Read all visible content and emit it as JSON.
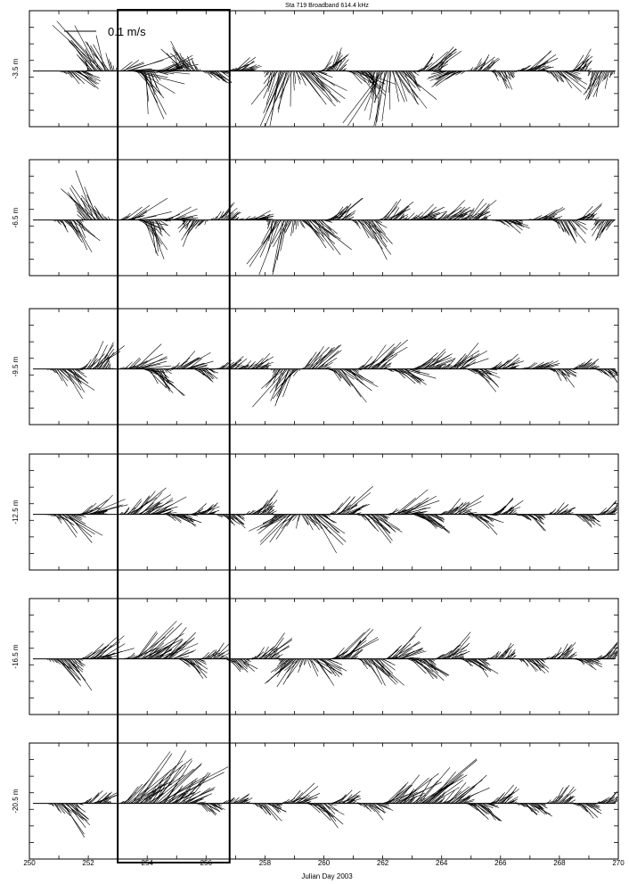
{
  "chart_data": {
    "type": "stick_plot",
    "title": "Sta 719 Broadband 614.4 kHz",
    "xlabel": "Julian Day 2003",
    "x_range": [
      250,
      270
    ],
    "x_ticks": [
      "250",
      "252",
      "254",
      "256",
      "258",
      "260",
      "262",
      "264",
      "266",
      "268",
      "270"
    ],
    "scale_label": "0.1 m/s",
    "highlight_box_days": [
      253,
      256.8
    ],
    "panels": [
      {
        "label": "-3.5 m",
        "anchors": [
          [
            251.6,
            0.35,
            -0.25
          ],
          [
            252.4,
            -0.5,
            0.85
          ],
          [
            253.4,
            0.65,
            0.3
          ],
          [
            253.8,
            0.2,
            -0.75
          ],
          [
            254.6,
            0.45,
            0.1
          ],
          [
            255.4,
            -0.3,
            0.4
          ],
          [
            256.2,
            0.25,
            -0.2
          ],
          [
            257.1,
            0.3,
            0.15
          ],
          [
            258.6,
            -0.35,
            -0.85
          ],
          [
            259.4,
            0.5,
            -0.45
          ],
          [
            260.2,
            0.25,
            0.35
          ],
          [
            261.2,
            0.4,
            -0.3
          ],
          [
            262,
            -0.3,
            -0.75
          ],
          [
            262.6,
            0.35,
            -0.45
          ],
          [
            263.6,
            0.35,
            0.35
          ],
          [
            264.4,
            -0.45,
            -0.25
          ],
          [
            265.3,
            0.2,
            0.25
          ],
          [
            266,
            0.15,
            -0.25
          ],
          [
            267,
            0.35,
            0.2
          ],
          [
            268,
            0.25,
            -0.3
          ],
          [
            268.6,
            0.2,
            0.25
          ],
          [
            269.4,
            -0.2,
            -0.45
          ]
        ]
      },
      {
        "label": "-6.5 m",
        "anchors": [
          [
            251.4,
            0.35,
            -0.45
          ],
          [
            252.2,
            -0.4,
            0.55
          ],
          [
            253.5,
            0.45,
            0.25
          ],
          [
            254,
            0.25,
            -0.55
          ],
          [
            254.8,
            0.35,
            0.1
          ],
          [
            255.6,
            -0.2,
            -0.3
          ],
          [
            256.6,
            0.2,
            0.2
          ],
          [
            257.6,
            0.25,
            0.1
          ],
          [
            258.6,
            -0.3,
            -0.75
          ],
          [
            259.6,
            0.45,
            -0.5
          ],
          [
            260.4,
            0.3,
            0.3
          ],
          [
            261.4,
            0.4,
            -0.45
          ],
          [
            262.2,
            0.3,
            0.25
          ],
          [
            263.2,
            0.35,
            0.2
          ],
          [
            264.2,
            0.3,
            0.2
          ],
          [
            265,
            0.3,
            0.25
          ],
          [
            266.2,
            0.25,
            -0.15
          ],
          [
            267.4,
            0.3,
            0.1
          ],
          [
            268.2,
            0.2,
            -0.35
          ],
          [
            268.8,
            0.25,
            0.2
          ],
          [
            269.6,
            -0.2,
            -0.25
          ]
        ]
      },
      {
        "label": "-9.5 m",
        "anchors": [
          [
            251.2,
            0.35,
            -0.35
          ],
          [
            252.2,
            0.4,
            0.45
          ],
          [
            253.6,
            0.45,
            0.25
          ],
          [
            254.2,
            0.3,
            -0.45
          ],
          [
            255.2,
            0.35,
            0.25
          ],
          [
            255.8,
            0.2,
            -0.15
          ],
          [
            256.8,
            0.2,
            0.15
          ],
          [
            257.6,
            0.25,
            0.15
          ],
          [
            258.8,
            -0.4,
            -0.55
          ],
          [
            259.6,
            0.35,
            0.35
          ],
          [
            260.6,
            0.4,
            -0.35
          ],
          [
            261.6,
            0.45,
            0.35
          ],
          [
            262.6,
            0.4,
            -0.25
          ],
          [
            263.4,
            0.35,
            0.25
          ],
          [
            264.4,
            0.4,
            0.3
          ],
          [
            265.2,
            0.3,
            -0.2
          ],
          [
            266,
            0.25,
            0.15
          ],
          [
            267.2,
            0.25,
            0.15
          ],
          [
            268,
            0.2,
            -0.2
          ],
          [
            268.8,
            0.2,
            0.15
          ],
          [
            269.6,
            0.2,
            -0.15
          ]
        ]
      },
      {
        "label": "-12.5 m",
        "anchors": [
          [
            251.2,
            0.4,
            -0.35
          ],
          [
            252,
            0.45,
            0.25
          ],
          [
            253.6,
            0.45,
            0.35
          ],
          [
            254.2,
            0.4,
            0.2
          ],
          [
            255,
            0.3,
            -0.2
          ],
          [
            255.8,
            0.25,
            0.15
          ],
          [
            256.8,
            0.2,
            -0.2
          ],
          [
            257.8,
            0.3,
            0.25
          ],
          [
            258.8,
            -0.45,
            -0.35
          ],
          [
            259.6,
            0.4,
            -0.4
          ],
          [
            260.6,
            0.45,
            0.3
          ],
          [
            261.6,
            0.4,
            -0.3
          ],
          [
            262.6,
            0.45,
            0.25
          ],
          [
            263.4,
            0.4,
            -0.3
          ],
          [
            264.4,
            0.35,
            0.25
          ],
          [
            265.2,
            0.3,
            -0.2
          ],
          [
            266,
            0.25,
            0.2
          ],
          [
            267,
            0.25,
            -0.2
          ],
          [
            268,
            0.2,
            0.15
          ],
          [
            268.8,
            0.2,
            -0.15
          ],
          [
            269.6,
            0.2,
            0.15
          ]
        ]
      },
      {
        "label": "-16.5 m",
        "anchors": [
          [
            251.2,
            0.4,
            -0.45
          ],
          [
            252.2,
            0.45,
            0.25
          ],
          [
            253.8,
            0.6,
            0.45
          ],
          [
            254.6,
            0.5,
            0.35
          ],
          [
            255.4,
            0.25,
            -0.2
          ],
          [
            256.2,
            0.2,
            0.2
          ],
          [
            257,
            0.25,
            -0.2
          ],
          [
            258,
            0.3,
            0.3
          ],
          [
            259,
            -0.4,
            -0.4
          ],
          [
            259.8,
            0.4,
            -0.35
          ],
          [
            260.6,
            0.45,
            0.4
          ],
          [
            261.6,
            0.35,
            -0.45
          ],
          [
            262.4,
            0.45,
            0.3
          ],
          [
            263.2,
            0.4,
            -0.3
          ],
          [
            264.2,
            0.35,
            0.25
          ],
          [
            265,
            0.3,
            -0.25
          ],
          [
            266,
            0.2,
            0.2
          ],
          [
            267,
            0.25,
            -0.2
          ],
          [
            268,
            0.2,
            0.2
          ],
          [
            268.8,
            0.2,
            -0.15
          ],
          [
            269.6,
            0.25,
            0.2
          ]
        ]
      },
      {
        "label": "-20.5 m",
        "anchors": [
          [
            251.2,
            0.35,
            -0.35
          ],
          [
            252.2,
            0.3,
            0.2
          ],
          [
            253.6,
            0.85,
            0.7
          ],
          [
            254.4,
            0.8,
            0.75
          ],
          [
            255.2,
            0.45,
            0.35
          ],
          [
            256,
            0.2,
            -0.15
          ],
          [
            257,
            0.2,
            0.15
          ],
          [
            258,
            0.25,
            -0.2
          ],
          [
            259,
            0.3,
            0.2
          ],
          [
            259.8,
            0.3,
            -0.25
          ],
          [
            260.6,
            0.3,
            0.2
          ],
          [
            261.6,
            0.25,
            -0.2
          ],
          [
            262.4,
            0.6,
            0.5
          ],
          [
            263.4,
            0.65,
            0.55
          ],
          [
            264.4,
            0.45,
            0.35
          ],
          [
            265.2,
            0.3,
            -0.25
          ],
          [
            266,
            0.25,
            0.2
          ],
          [
            267,
            0.25,
            -0.2
          ],
          [
            268,
            0.2,
            0.2
          ],
          [
            268.8,
            0.2,
            -0.15
          ],
          [
            269.6,
            0.2,
            0.15
          ]
        ]
      }
    ]
  }
}
